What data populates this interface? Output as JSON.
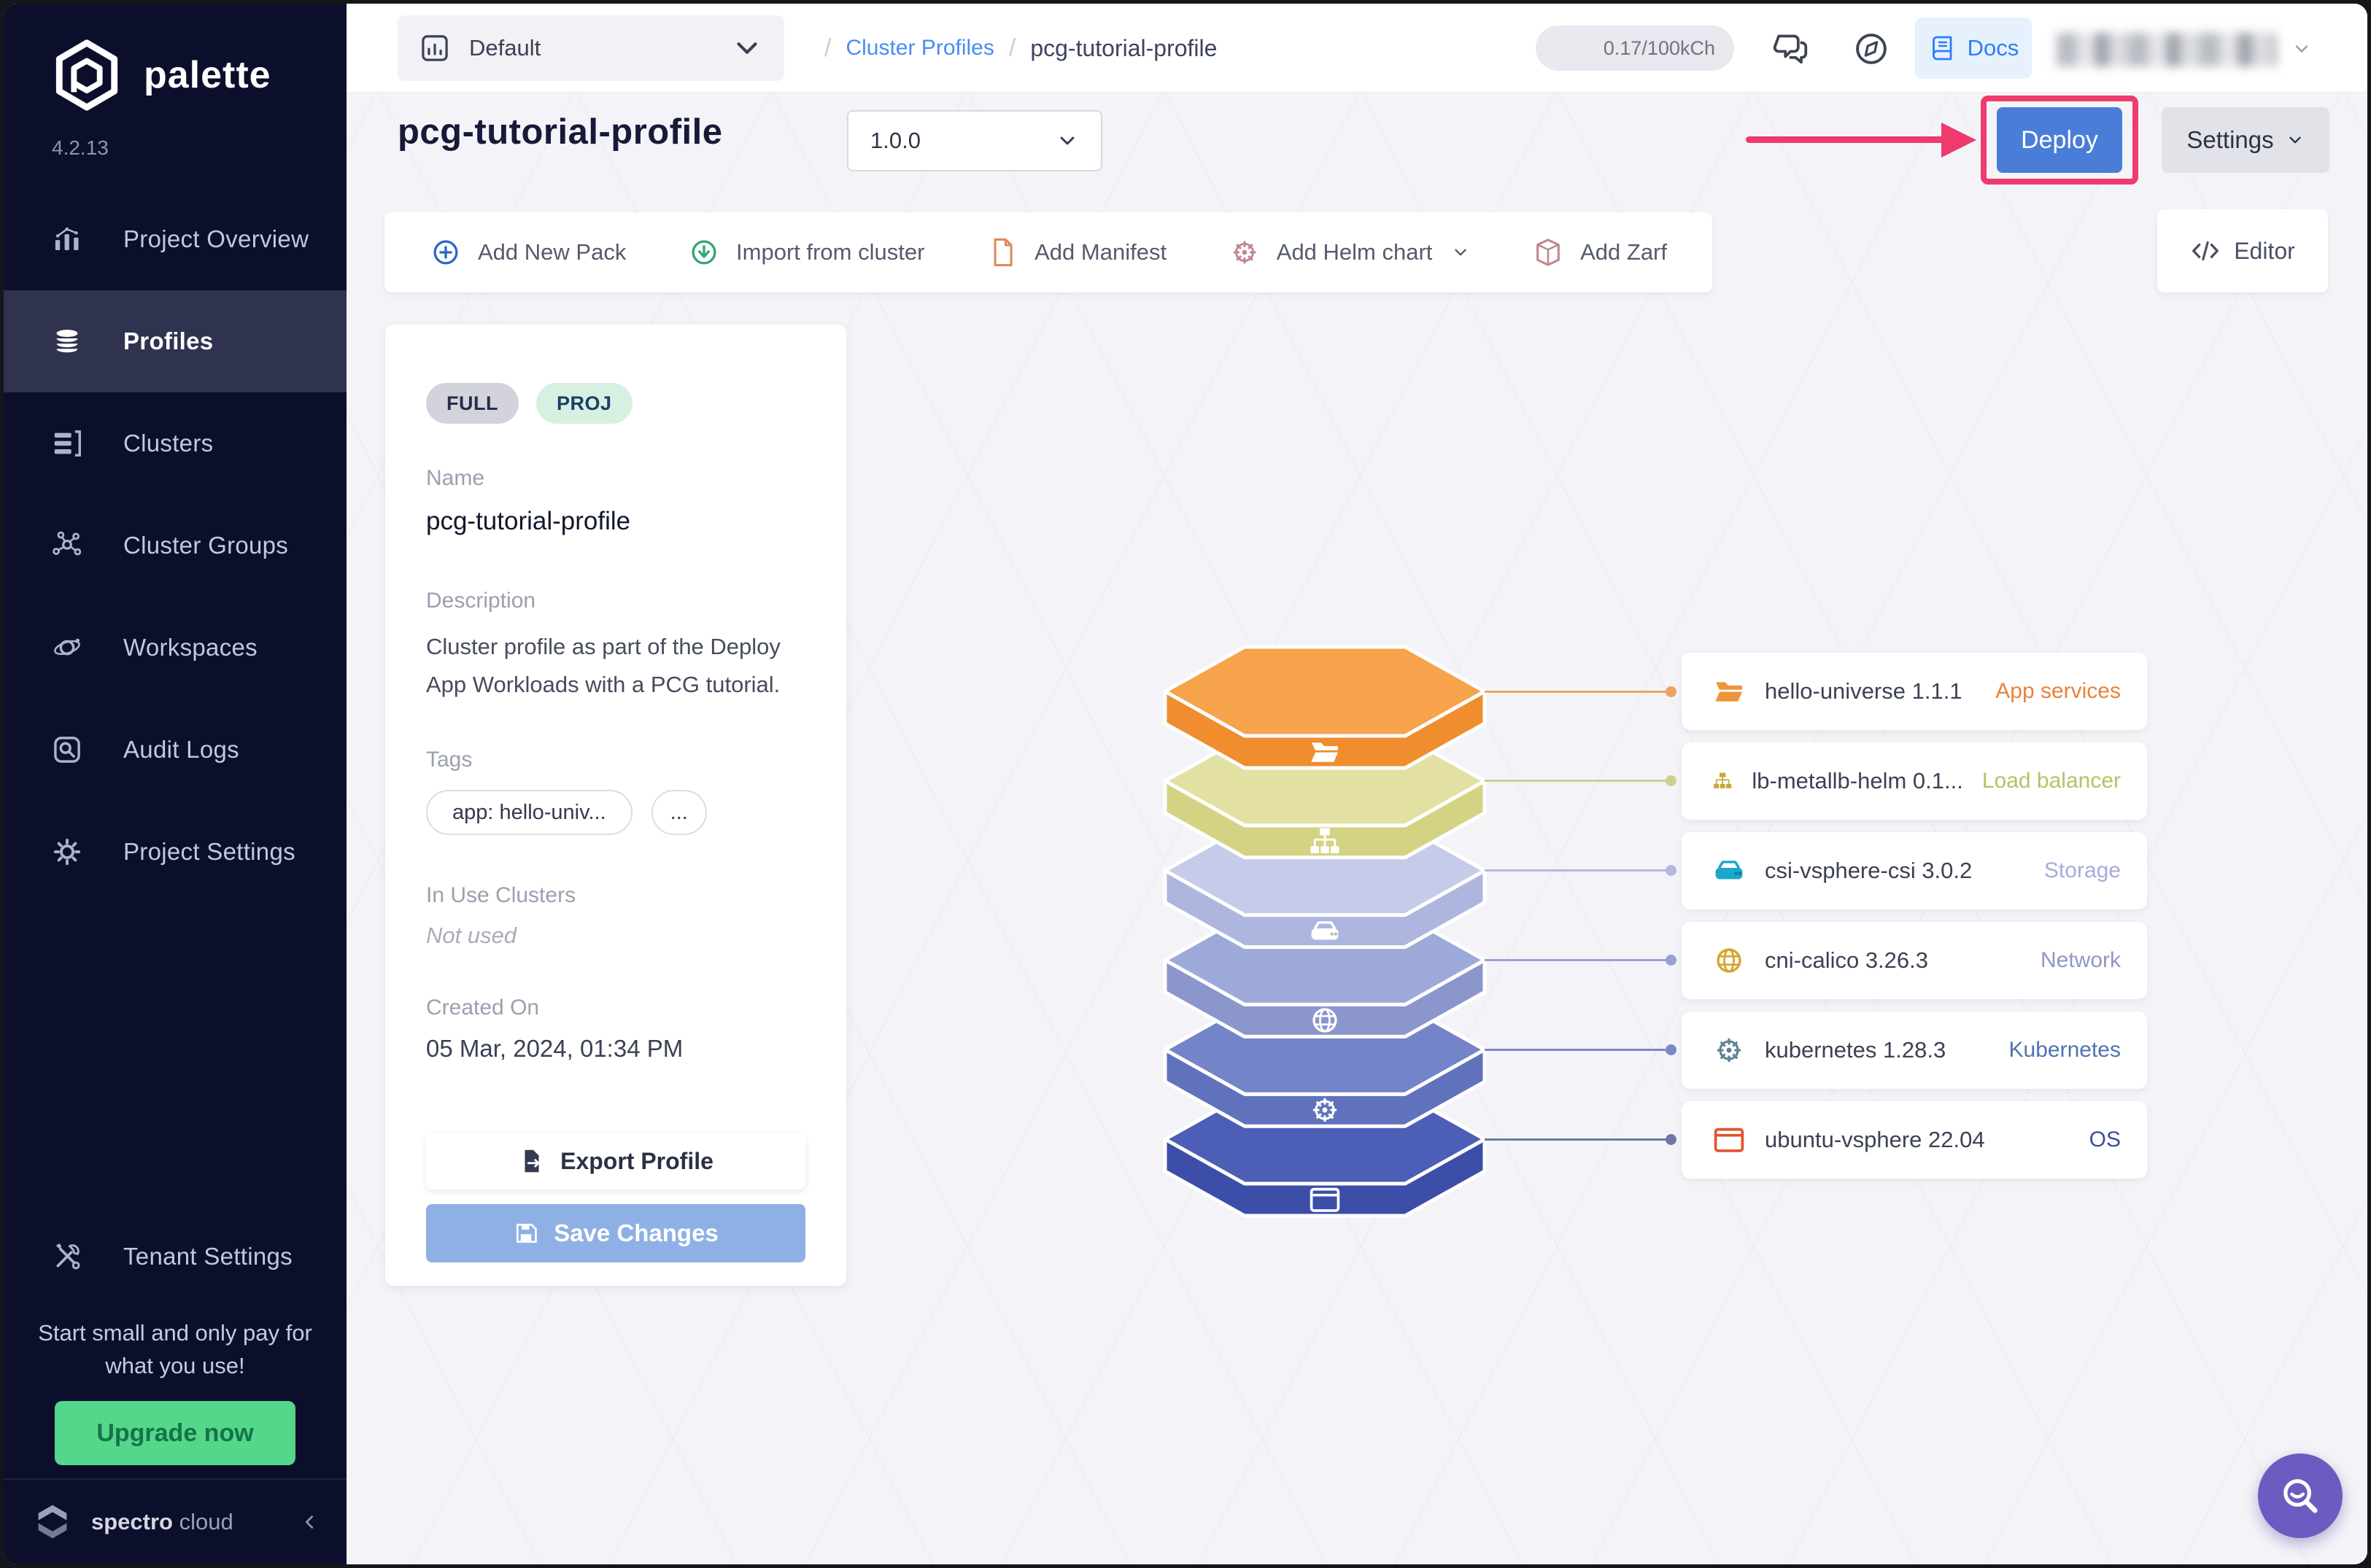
{
  "sidebar": {
    "brand": "palette",
    "version": "4.2.13",
    "items": [
      {
        "label": "Project Overview",
        "icon": "chart",
        "active": false
      },
      {
        "label": "Profiles",
        "icon": "layers",
        "active": true
      },
      {
        "label": "Clusters",
        "icon": "servers",
        "active": false
      },
      {
        "label": "Cluster Groups",
        "icon": "nodes",
        "active": false
      },
      {
        "label": "Workspaces",
        "icon": "orbit",
        "active": false
      },
      {
        "label": "Audit Logs",
        "icon": "audit",
        "active": false
      },
      {
        "label": "Project Settings",
        "icon": "gear",
        "active": false
      }
    ],
    "tenant_settings_label": "Tenant Settings",
    "promo_text": "Start small and only pay for what you use!",
    "upgrade_label": "Upgrade now",
    "upgrade_bg": "#54d78a",
    "footer_brand_bold": "spectro",
    "footer_brand_light": "cloud"
  },
  "topbar": {
    "project": "Default",
    "sep1": "/",
    "link": "Cluster Profiles",
    "sep2": "/",
    "current": "pcg-tutorial-profile",
    "usage": "0.17/100kCh",
    "docs_label": "Docs"
  },
  "header": {
    "title": "pcg-tutorial-profile",
    "version": "1.0.0",
    "deploy_label": "Deploy",
    "settings_label": "Settings",
    "deploy_color": "#4a7dd8",
    "annotation_color": "#ef3a6e"
  },
  "toolbar": {
    "items": [
      {
        "label": "Add New Pack",
        "icon": "plus-circle",
        "color": "#2a66cc"
      },
      {
        "label": "Import from cluster",
        "icon": "import-circle",
        "color": "#2fa86f"
      },
      {
        "label": "Add Manifest",
        "icon": "file",
        "color": "#e08a5e"
      },
      {
        "label": "Add Helm chart",
        "icon": "wheel",
        "color": "#c2858d",
        "has_chevron": true
      },
      {
        "label": "Add Zarf",
        "icon": "package",
        "color": "#bf8b90"
      }
    ],
    "editor_label": "Editor"
  },
  "profile": {
    "badges": [
      {
        "label": "FULL",
        "bg": "#d3d4db",
        "fg": "#272c4a"
      },
      {
        "label": "PROJ",
        "bg": "#d8f0e2",
        "fg": "#1c3f66"
      }
    ],
    "name_label": "Name",
    "name": "pcg-tutorial-profile",
    "description_label": "Description",
    "description": "Cluster profile as part of the Deploy App Workloads with a PCG tutorial.",
    "tags_label": "Tags",
    "tags": [
      "app: hello-univ...",
      "..."
    ],
    "in_use_label": "In Use Clusters",
    "in_use_value": "Not used",
    "created_label": "Created On",
    "created_value": "05 Mar, 2024, 01:34 PM",
    "export_label": "Export Profile",
    "save_label": "Save Changes"
  },
  "packs": [
    {
      "name": "hello-universe 1.1.1",
      "type": "App services",
      "type_color": "#e8833a",
      "icon": "folder",
      "icon_color": "#f0943c",
      "line_color": "#eda263"
    },
    {
      "name": "lb-metallb-helm 0.1...",
      "type": "Load balancer",
      "type_color": "#b9c064",
      "icon": "sitemap",
      "icon_color": "#c9a83a",
      "line_color": "#cdd08b"
    },
    {
      "name": "csi-vsphere-csi 3.0.2",
      "type": "Storage",
      "type_color": "#a7aade",
      "icon": "hdd",
      "icon_color": "#1ba7c9",
      "line_color": "#b3b8de"
    },
    {
      "name": "cni-calico 3.26.3",
      "type": "Network",
      "type_color": "#8f97c6",
      "icon": "globe",
      "icon_color": "#d4a62c",
      "line_color": "#98a2d2"
    },
    {
      "name": "kubernetes 1.28.3",
      "type": "Kubernetes",
      "type_color": "#4e73b2",
      "icon": "wheel",
      "icon_color": "#5f8292",
      "line_color": "#7b88c4"
    },
    {
      "name": "ubuntu-vsphere 22.04",
      "type": "OS",
      "type_color": "#3a4d9f",
      "icon": "window",
      "icon_color": "#e4512e",
      "line_color": "#6e77ab"
    }
  ],
  "stack": {
    "layers": [
      {
        "top": "#f6a34b",
        "front": "#ef8d2f",
        "icon": "folder"
      },
      {
        "top": "#e2e1a3",
        "front": "#d3d383",
        "icon": "sitemap"
      },
      {
        "top": "#c6cbe9",
        "front": "#aeb6df",
        "icon": "hdd"
      },
      {
        "top": "#9daad9",
        "front": "#8a96cc",
        "icon": "globe"
      },
      {
        "top": "#7484c8",
        "front": "#6172bd",
        "icon": "wheel"
      },
      {
        "top": "#4d5eb6",
        "front": "#3c4ea8",
        "icon": "window"
      }
    ]
  },
  "fab": {
    "color": "#6a5cc0"
  }
}
